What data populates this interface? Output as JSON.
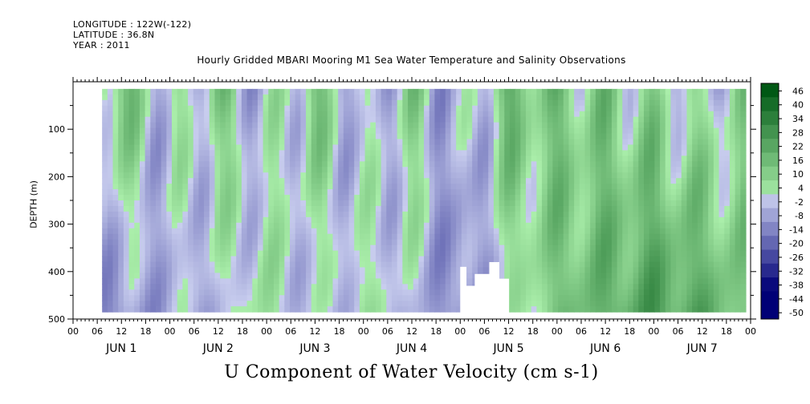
{
  "header": {
    "longitude": "LONGITUDE : 122W(-122)",
    "latitude": "LATITUDE : 36.8N",
    "year": "YEAR : 2011"
  },
  "chart_data": {
    "type": "heatmap",
    "title": "Hourly Gridded MBARI Mooring M1 Sea Water Temperature and Salinity Observations",
    "xlabel": "U Component of Water Velocity (cm s-1)",
    "ylabel": "DEPTH (m)",
    "x_hour_ticks": [
      "00",
      "06",
      "12",
      "18",
      "00",
      "06",
      "12",
      "18",
      "00",
      "06",
      "12",
      "18",
      "00",
      "06",
      "12",
      "18",
      "00",
      "06",
      "12",
      "18",
      "00",
      "06",
      "12",
      "18",
      "00",
      "06",
      "12",
      "18",
      "00"
    ],
    "x_day_labels": [
      "JUN 1",
      "JUN 2",
      "JUN 3",
      "JUN 4",
      "JUN 5",
      "JUN 6",
      "JUN 7"
    ],
    "x_range_days": [
      0,
      7
    ],
    "y_ticks": [
      100,
      200,
      300,
      400,
      500
    ],
    "y_tick_labels": [
      "100",
      "200",
      "300",
      "400",
      "500"
    ],
    "ylim": [
      500,
      0
    ],
    "data_depth_range": [
      15,
      485
    ],
    "data_start_day": 0.3,
    "colorbar": {
      "levels": [
        -50,
        -44,
        -38,
        -32,
        -26,
        -20,
        -14,
        -8,
        -2,
        4,
        10,
        16,
        22,
        28,
        34,
        40,
        46
      ],
      "labels": [
        "46",
        "40",
        "34",
        "28",
        "22",
        "16",
        "10",
        "4",
        "-2",
        "-8",
        "-14",
        "-20",
        "-26",
        "-32",
        "-38",
        "-44",
        "-50"
      ]
    },
    "column_profiles": {
      "day_centers": [
        0.5,
        1.0,
        1.5,
        2.0,
        2.5,
        3.0,
        3.5,
        4.0,
        4.5,
        5.0,
        5.5,
        6.0,
        6.5,
        7.0
      ],
      "upper_layer": [
        12,
        -4,
        8,
        -6,
        10,
        -8,
        6,
        -10,
        14,
        10,
        8,
        4,
        -2,
        6
      ],
      "lower_layer": [
        -12,
        -6,
        -4,
        4,
        -6,
        2,
        -4,
        -14,
        -2,
        12,
        18,
        24,
        20,
        10
      ]
    },
    "missing_data_gaps": [
      {
        "day_from": 4.0,
        "day_to": 4.06,
        "depth_from": 390
      },
      {
        "day_from": 4.06,
        "day_to": 4.15,
        "depth_from": 430
      },
      {
        "day_from": 4.15,
        "day_to": 4.3,
        "depth_from": 405
      },
      {
        "day_from": 4.3,
        "day_to": 4.4,
        "depth_from": 380
      },
      {
        "day_from": 4.4,
        "day_to": 4.5,
        "depth_from": 415
      }
    ],
    "grid": false,
    "legend": "colorbar-right"
  }
}
